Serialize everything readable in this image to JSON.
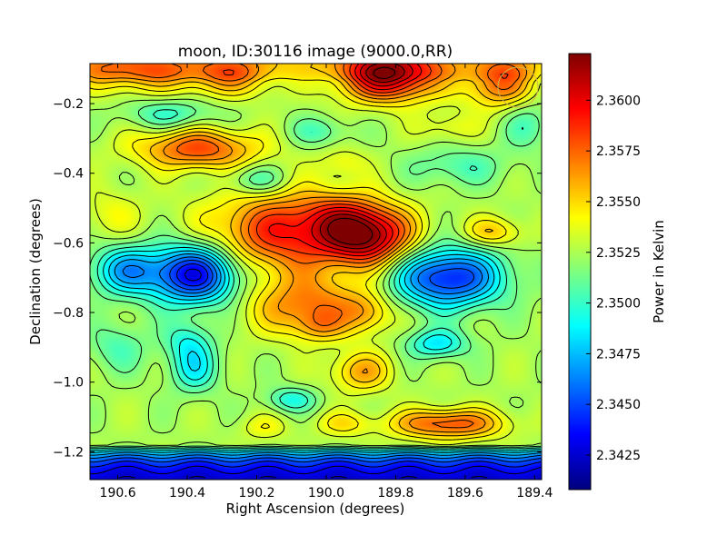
{
  "chart_data": {
    "type": "heatmap",
    "title": "moon, ID:30116 image (9000.0,RR)",
    "xlabel": "Right Ascension (degrees)",
    "ylabel": "Declination (degrees)",
    "colorbar_label": "Power in Kelvin",
    "colormap": "jet",
    "colormap_stops": [
      "#00007f",
      "#0000ff",
      "#007fff",
      "#00ffff",
      "#7fff7f",
      "#ffff00",
      "#ff7f00",
      "#ff0000",
      "#7f0000"
    ],
    "x_reversed": true,
    "xlim": [
      190.68,
      189.38
    ],
    "ylim": [
      -1.28,
      -0.085
    ],
    "x_ticks": [
      190.6,
      190.4,
      190.2,
      190.0,
      189.8,
      189.6,
      189.4
    ],
    "x_tick_labels": [
      "190.6",
      "190.4",
      "190.2",
      "190.0",
      "189.8",
      "189.6",
      "189.4"
    ],
    "y_ticks": [
      -0.2,
      -0.4,
      -0.6,
      -0.8,
      -1.0,
      -1.2
    ],
    "y_tick_labels": [
      "−0.2",
      "−0.4",
      "−0.6",
      "−0.8",
      "−1.0",
      "−1.2"
    ],
    "clim": [
      2.3408,
      2.3623
    ],
    "colorbar_ticks": [
      2.3425,
      2.345,
      2.3475,
      2.35,
      2.3525,
      2.355,
      2.3575,
      2.36
    ],
    "colorbar_tick_labels": [
      "2.3425",
      "2.3450",
      "2.3475",
      "2.3500",
      "2.3525",
      "2.3550",
      "2.3575",
      "2.3600"
    ],
    "contours": true,
    "beam_marker_color": "#d4b44a",
    "base_level": 2.3525,
    "features": [
      {
        "ra": 189.88,
        "dec": -0.58,
        "sx": 0.09,
        "sy": 0.06,
        "v": 0.0085
      },
      {
        "ra": 190.12,
        "dec": -0.57,
        "sx": 0.15,
        "sy": 0.08,
        "v": 0.0065
      },
      {
        "ra": 189.97,
        "dec": -0.52,
        "sx": 0.08,
        "sy": 0.05,
        "v": 0.002
      },
      {
        "ra": 190.38,
        "dec": -0.69,
        "sx": 0.09,
        "sy": 0.06,
        "v": -0.0095
      },
      {
        "ra": 190.58,
        "dec": -0.68,
        "sx": 0.07,
        "sy": 0.05,
        "v": -0.005
      },
      {
        "ra": 189.65,
        "dec": -0.7,
        "sx": 0.11,
        "sy": 0.06,
        "v": -0.0085
      },
      {
        "ra": 190.05,
        "dec": -0.78,
        "sx": 0.12,
        "sy": 0.06,
        "v": 0.0045
      },
      {
        "ra": 190.02,
        "dec": -0.84,
        "sx": 0.05,
        "sy": 0.03,
        "v": 0.002
      },
      {
        "ra": 189.88,
        "dec": -0.8,
        "sx": 0.05,
        "sy": 0.04,
        "v": 0.0025
      },
      {
        "ra": 190.37,
        "dec": -0.33,
        "sx": 0.12,
        "sy": 0.04,
        "v": 0.0055
      },
      {
        "ra": 189.82,
        "dec": -0.12,
        "sx": 0.1,
        "sy": 0.05,
        "v": 0.009
      },
      {
        "ra": 190.28,
        "dec": -0.12,
        "sx": 0.1,
        "sy": 0.04,
        "v": 0.004
      },
      {
        "ra": 190.56,
        "dec": -0.11,
        "sx": 0.12,
        "sy": 0.04,
        "v": 0.004
      },
      {
        "ra": 189.5,
        "dec": -0.14,
        "sx": 0.07,
        "sy": 0.05,
        "v": 0.005
      },
      {
        "ra": 189.65,
        "dec": -1.12,
        "sx": 0.11,
        "sy": 0.03,
        "v": 0.0055
      },
      {
        "ra": 189.95,
        "dec": -1.12,
        "sx": 0.06,
        "sy": 0.025,
        "v": 0.002
      },
      {
        "ra": 190.18,
        "dec": -1.13,
        "sx": 0.05,
        "sy": 0.025,
        "v": 0.0015
      },
      {
        "ra": 189.9,
        "dec": -0.97,
        "sx": 0.06,
        "sy": 0.04,
        "v": 0.0035
      },
      {
        "ra": 190.38,
        "dec": -0.96,
        "sx": 0.05,
        "sy": 0.05,
        "v": -0.0035
      },
      {
        "ra": 189.68,
        "dec": -0.89,
        "sx": 0.06,
        "sy": 0.03,
        "v": -0.004
      },
      {
        "ra": 190.1,
        "dec": -1.05,
        "sx": 0.05,
        "sy": 0.025,
        "v": -0.003
      },
      {
        "ra": 190.4,
        "dec": -0.88,
        "sx": 0.05,
        "sy": 0.04,
        "v": -0.0025
      },
      {
        "ra": 190.6,
        "dec": -0.9,
        "sx": 0.06,
        "sy": 0.05,
        "v": -0.002
      },
      {
        "ra": 190.2,
        "dec": -0.42,
        "sx": 0.06,
        "sy": 0.03,
        "v": -0.0025
      },
      {
        "ra": 189.62,
        "dec": -0.38,
        "sx": 0.1,
        "sy": 0.04,
        "v": -0.002
      },
      {
        "ra": 189.42,
        "dec": -0.26,
        "sx": 0.05,
        "sy": 0.05,
        "v": -0.002
      },
      {
        "ra": 190.45,
        "dec": -0.23,
        "sx": 0.09,
        "sy": 0.03,
        "v": -0.0025
      },
      {
        "ra": 190.02,
        "dec": -0.28,
        "sx": 0.06,
        "sy": 0.03,
        "v": -0.002
      },
      {
        "ra": 189.52,
        "dec": -0.57,
        "sx": 0.06,
        "sy": 0.03,
        "v": 0.003
      },
      {
        "ra": 190.62,
        "dec": -0.52,
        "sx": 0.06,
        "sy": 0.05,
        "v": 0.0015
      },
      {
        "ra": 189.65,
        "dec": -0.27,
        "sx": 0.06,
        "sy": 0.03,
        "v": 0.0015
      },
      {
        "ra": 189.95,
        "dec": -0.37,
        "sx": 0.05,
        "sy": 0.03,
        "v": 0.0015
      }
    ],
    "bands": [
      {
        "dec_from": -1.18,
        "scale": 0.04,
        "amplitude": -0.011
      },
      {
        "dec_from": -0.14,
        "scale": 0.04,
        "amplitude": 0.0025,
        "direction": "up"
      }
    ]
  }
}
